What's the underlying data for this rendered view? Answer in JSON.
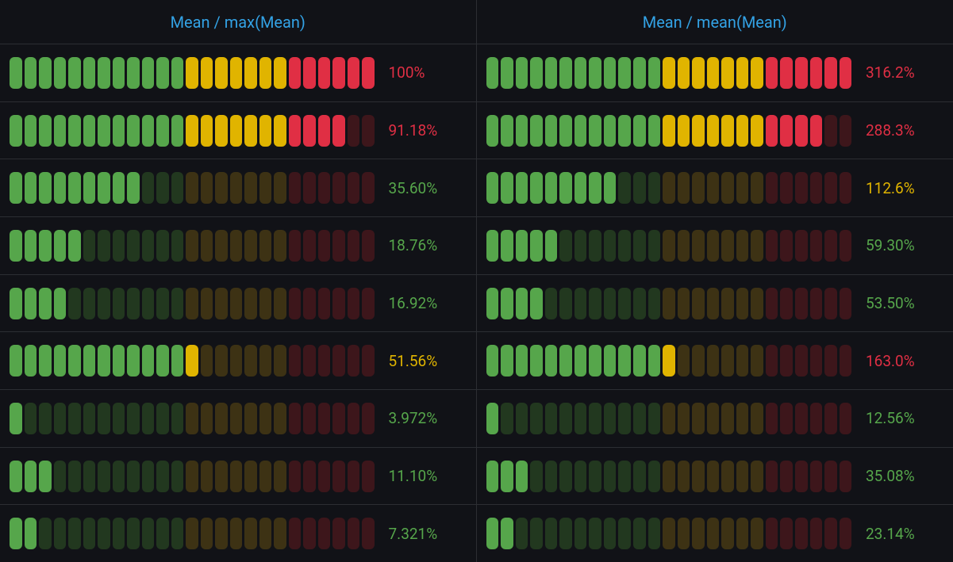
{
  "colors": {
    "green_on": "#56a64b",
    "green_off": "#22381f",
    "yellow_on": "#e0b400",
    "yellow_off": "#3d3214",
    "red_on": "#e02f44",
    "red_off": "#3d161b",
    "title": "#33a2e5"
  },
  "gauge": {
    "segments": 25,
    "thresholds": {
      "green_end": 12,
      "yellow_end": 19
    },
    "label_fontsize": 19,
    "title_fontsize": 20,
    "background": "#111217",
    "border": "#2c2e33"
  },
  "panels": [
    {
      "title": "Mean / max(Mean)",
      "max": 100,
      "rows": [
        {
          "value": 100.0,
          "label": "100%",
          "label_color": "#e02f44"
        },
        {
          "value": 91.18,
          "label": "91.18%",
          "label_color": "#e02f44"
        },
        {
          "value": 35.6,
          "label": "35.60%",
          "label_color": "#56a64b"
        },
        {
          "value": 18.76,
          "label": "18.76%",
          "label_color": "#56a64b"
        },
        {
          "value": 16.92,
          "label": "16.92%",
          "label_color": "#56a64b"
        },
        {
          "value": 51.56,
          "label": "51.56%",
          "label_color": "#e0b400"
        },
        {
          "value": 3.972,
          "label": "3.972%",
          "label_color": "#56a64b"
        },
        {
          "value": 11.1,
          "label": "11.10%",
          "label_color": "#56a64b"
        },
        {
          "value": 7.321,
          "label": "7.321%",
          "label_color": "#56a64b"
        }
      ]
    },
    {
      "title": "Mean / mean(Mean)",
      "max": 316.2,
      "rows": [
        {
          "value": 316.2,
          "label": "316.2%",
          "label_color": "#e02f44"
        },
        {
          "value": 288.3,
          "label": "288.3%",
          "label_color": "#e02f44"
        },
        {
          "value": 112.6,
          "label": "112.6%",
          "label_color": "#e0b400"
        },
        {
          "value": 59.3,
          "label": "59.30%",
          "label_color": "#56a64b"
        },
        {
          "value": 53.5,
          "label": "53.50%",
          "label_color": "#56a64b"
        },
        {
          "value": 163.0,
          "label": "163.0%",
          "label_color": "#e02f44"
        },
        {
          "value": 12.56,
          "label": "12.56%",
          "label_color": "#56a64b"
        },
        {
          "value": 35.08,
          "label": "35.08%",
          "label_color": "#56a64b"
        },
        {
          "value": 23.14,
          "label": "23.14%",
          "label_color": "#56a64b"
        }
      ]
    }
  ]
}
